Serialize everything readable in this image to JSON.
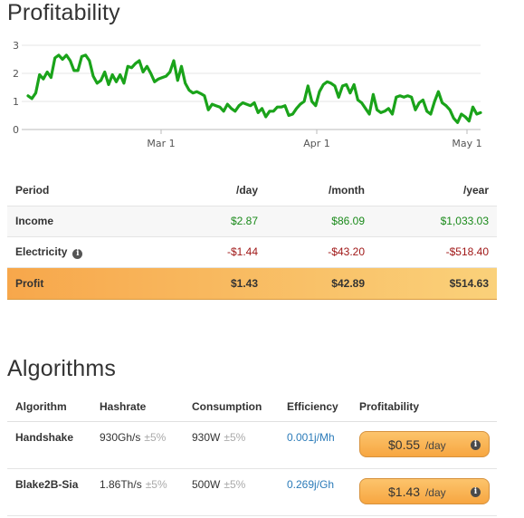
{
  "profitability": {
    "title": "Profitability",
    "chart_data": {
      "type": "line",
      "ylim": [
        0,
        3
      ],
      "yticks": [
        "0",
        "1",
        "2",
        "3"
      ],
      "xticks": [
        "Mar 1",
        "Apr 1",
        "May 1"
      ],
      "grid": true,
      "series_color": "#1aa31a",
      "values": [
        1.2,
        1.1,
        1.3,
        1.95,
        1.8,
        2.05,
        1.85,
        2.55,
        2.65,
        2.5,
        2.65,
        2.45,
        2.1,
        2.1,
        2.6,
        2.65,
        2.45,
        1.9,
        1.65,
        1.75,
        2.05,
        1.6,
        1.95,
        1.7,
        1.95,
        1.65,
        2.25,
        2.2,
        2.35,
        2.45,
        2.05,
        2.25,
        2.0,
        1.7,
        1.8,
        1.85,
        1.9,
        2.05,
        2.45,
        1.75,
        2.25,
        1.65,
        1.4,
        1.3,
        1.35,
        1.28,
        1.2,
        0.7,
        0.9,
        0.85,
        0.8,
        0.65,
        0.9,
        0.75,
        0.65,
        0.85,
        0.95,
        0.9,
        0.85,
        0.95,
        0.6,
        0.75,
        0.45,
        0.65,
        0.65,
        0.8,
        0.8,
        0.85,
        0.5,
        0.55,
        0.75,
        0.9,
        1.0,
        1.55,
        1.0,
        0.85,
        1.35,
        1.6,
        1.7,
        1.65,
        1.55,
        1.15,
        1.55,
        1.6,
        1.3,
        1.6,
        1.05,
        0.95,
        0.75,
        0.55,
        1.25,
        0.7,
        0.6,
        0.65,
        0.75,
        0.55,
        1.15,
        1.2,
        1.15,
        1.2,
        1.15,
        0.7,
        0.95,
        1.05,
        0.65,
        0.55,
        1.0,
        1.35,
        0.95,
        0.85,
        0.7,
        0.4,
        0.25,
        0.55,
        0.45,
        0.3,
        0.8,
        0.55,
        0.6
      ]
    },
    "table": {
      "headers": [
        "Period",
        "/day",
        "/month",
        "/year"
      ],
      "income": {
        "label": "Income",
        "day": "$2.87",
        "month": "$86.09",
        "year": "$1,033.03"
      },
      "electricity": {
        "label": "Electricity",
        "day": "-$1.44",
        "month": "-$43.20",
        "year": "-$518.40"
      },
      "profit": {
        "label": "Profit",
        "day": "$1.43",
        "month": "$42.89",
        "year": "$514.63"
      }
    }
  },
  "algorithms": {
    "title": "Algorithms",
    "headers": [
      "Algorithm",
      "Hashrate",
      "Consumption",
      "Efficiency",
      "Profitability"
    ],
    "rows": [
      {
        "name": "Handshake",
        "hashrate": "930Gh/s",
        "hashrate_tol": "±5%",
        "consumption": "930W",
        "consumption_tol": "±5%",
        "efficiency": "0.001j/Mh",
        "profit": "$0.55",
        "profit_unit": "/day"
      },
      {
        "name": "Blake2B-Sia",
        "hashrate": "1.86Th/s",
        "hashrate_tol": "±5%",
        "consumption": "500W",
        "consumption_tol": "±5%",
        "efficiency": "0.269j/Gh",
        "profit": "$1.43",
        "profit_unit": "/day"
      }
    ]
  },
  "icons": {
    "info": "info-icon"
  }
}
